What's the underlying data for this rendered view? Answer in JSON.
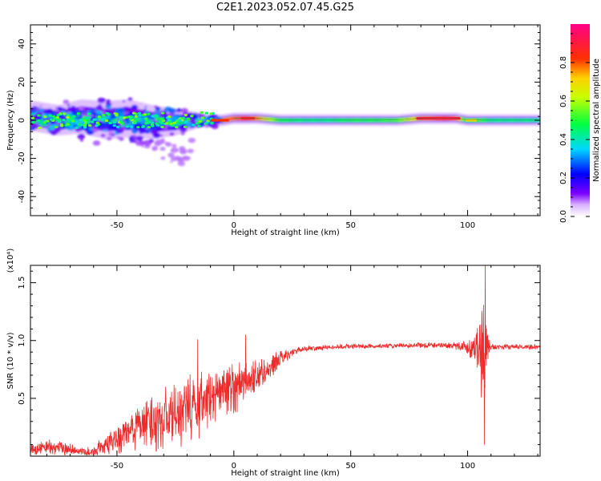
{
  "figure_title": "C2E1.2023.052.07.45.G25",
  "colorbar": {
    "label": "Normalized spectral amplitude",
    "ticks": [
      "0.0",
      "0.2",
      "0.4",
      "0.6",
      "0.8"
    ],
    "tick_values": [
      0.0,
      0.2,
      0.4,
      0.6,
      0.8
    ]
  },
  "chart_data": [
    {
      "type": "heatmap",
      "title": "",
      "xlabel": "Height of straight line (km)",
      "ylabel": "Frequency (Hz)",
      "xlim": [
        -87,
        131
      ],
      "ylim": [
        -50,
        50
      ],
      "xticks": [
        -50,
        0,
        50,
        100
      ],
      "yticks": [
        -40,
        -20,
        0,
        20,
        40
      ],
      "value_range": [
        0,
        1
      ],
      "description_of_values": "Spectral power concentrated near 0 Hz; broad scatter (about -10 to +10 Hz) for heights below about -10 km; narrow band near 0-2 Hz above 0 km; peak amplitude (about 0.9) between about 75 and 97 km and near 5 km",
      "ridge": {
        "x": [
          -85,
          -75,
          -65,
          -55,
          -45,
          -35,
          -25,
          -15,
          -10,
          -5,
          0,
          5,
          10,
          20,
          30,
          40,
          50,
          60,
          70,
          80,
          90,
          95,
          100,
          105,
          110,
          120,
          130
        ],
        "center_freq": [
          2,
          0,
          2,
          0,
          1,
          -1,
          -1,
          0,
          0,
          0,
          1,
          1,
          1,
          0,
          0,
          0,
          0,
          0,
          0,
          1,
          1,
          1,
          0,
          0,
          0,
          0,
          0
        ],
        "peak_amplitude": [
          0.45,
          0.5,
          0.55,
          0.5,
          0.5,
          0.45,
          0.45,
          0.5,
          0.7,
          0.8,
          0.85,
          0.9,
          0.8,
          0.5,
          0.45,
          0.45,
          0.5,
          0.5,
          0.55,
          0.8,
          0.9,
          0.85,
          0.45,
          0.55,
          0.45,
          0.45,
          0.45
        ],
        "spread_hz": [
          8,
          8,
          9,
          10,
          10,
          9,
          7,
          4,
          3,
          3,
          3,
          3,
          3,
          3,
          3,
          3,
          3,
          3,
          3,
          3,
          3,
          3,
          3,
          3,
          3,
          3,
          3
        ]
      }
    },
    {
      "type": "line",
      "title": "",
      "xlabel": "Height of straight line (km)",
      "ylabel": "SNR (10 * v/v)",
      "y_multiplier": "(x10⁴)",
      "xlim": [
        -87,
        131
      ],
      "ylim": [
        0,
        16500
      ],
      "xticks": [
        -50,
        0,
        50,
        100
      ],
      "yticks": [
        5000,
        10000,
        15000
      ],
      "ytick_labels": [
        "0.5",
        "1.0",
        "1.5"
      ],
      "color": "#ee2b2b",
      "envelope": {
        "x": [
          -87,
          -80,
          -70,
          -65,
          -60,
          -55,
          -50,
          -45,
          -40,
          -35,
          -30,
          -25,
          -20,
          -15,
          -10,
          -5,
          0,
          5,
          10,
          15,
          20,
          25,
          30,
          40,
          50,
          60,
          70,
          80,
          90,
          95,
          100,
          103,
          105,
          106,
          107,
          108,
          109,
          110,
          115,
          120,
          131
        ],
        "mean": [
          500,
          800,
          600,
          300,
          400,
          900,
          1500,
          2000,
          2800,
          3000,
          3200,
          3500,
          4000,
          4500,
          5000,
          5500,
          6000,
          6500,
          7000,
          7500,
          8500,
          9000,
          9300,
          9400,
          9500,
          9500,
          9550,
          9600,
          9600,
          9550,
          9400,
          9500,
          9000,
          9300,
          9500,
          9400,
          9450,
          9450,
          9450,
          9450,
          9450
        ],
        "amplitude": [
          600,
          800,
          600,
          500,
          600,
          1000,
          1500,
          2000,
          2500,
          2800,
          3000,
          3000,
          3500,
          3500,
          3000,
          2500,
          2500,
          2000,
          1800,
          1200,
          800,
          400,
          300,
          250,
          250,
          250,
          250,
          300,
          300,
          400,
          800,
          1500,
          3000,
          5500,
          7000,
          3000,
          1000,
          400,
          250,
          250,
          250
        ]
      },
      "spikes": [
        {
          "x": -15.5,
          "y": 10100
        },
        {
          "x": 5,
          "y": 10500
        },
        {
          "x": 107.5,
          "y": 16500
        },
        {
          "x": 107.2,
          "y": 1000
        }
      ]
    }
  ]
}
